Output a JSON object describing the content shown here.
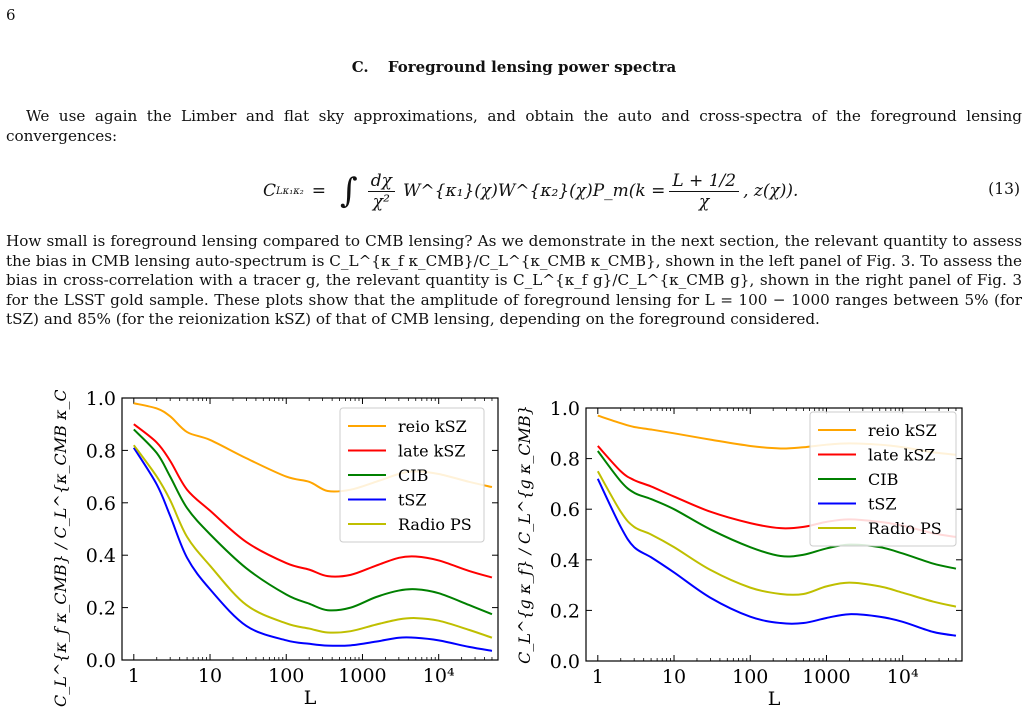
{
  "page": {
    "number": "6"
  },
  "section": {
    "letter": "C.",
    "title": "Foreground lensing power spectra"
  },
  "paragraph1": "We use again the Limber and flat sky approximations, and obtain the auto and cross-spectra of the foreground lensing convergences:",
  "equation": {
    "lhs": "C",
    "lhs_sub": "L",
    "lhs_sup": "κ₁κ₂",
    "equals": "=",
    "frac1_num": "dχ",
    "frac1_den": "χ²",
    "body": "W^{κ₁}(χ)W^{κ₂}(χ)P_m(k =",
    "frac2_num": "L + 1/2",
    "frac2_den": "χ",
    "tail": ", z(χ)).",
    "number": "(13)"
  },
  "paragraph2": "How small is foreground lensing compared to CMB lensing? As we demonstrate in the next section, the relevant quantity to assess the bias in CMB lensing auto-spectrum is C_L^{κ_f κ_CMB}/C_L^{κ_CMB κ_CMB}, shown in the left panel of Fig. 3. To assess the bias in cross-correlation with a tracer g, the relevant quantity is C_L^{κ_f g}/C_L^{κ_CMB g}, shown in the right panel of Fig. 3 for the LSST gold sample. These plots show that the amplitude of foreground lensing for L = 100 − 1000 ranges between 5% (for tSZ) and 85% (for the reionization kSZ) of that of CMB lensing, depending on the foreground considered.",
  "chart_data": [
    {
      "type": "line",
      "xlabel": "L",
      "ylabel": "C_L^{κ_f κ_CMB} / C_L^{κ_CMB κ_CMB}",
      "xscale": "log",
      "xlim": [
        0.7,
        60000
      ],
      "ylim": [
        0.0,
        1.0
      ],
      "xticks": [
        "1",
        "10",
        "100",
        "1000",
        "10⁴"
      ],
      "yticks": [
        "0.0",
        "0.2",
        "0.4",
        "0.6",
        "0.8",
        "1.0"
      ],
      "legend_position": "top-right",
      "x": [
        1,
        2,
        3,
        5,
        10,
        30,
        100,
        200,
        350,
        700,
        1500,
        3000,
        5000,
        10000,
        25000,
        50000
      ],
      "series": [
        {
          "name": "reio kSZ",
          "color": "#ffa500",
          "values": [
            0.98,
            0.96,
            0.93,
            0.87,
            0.84,
            0.77,
            0.7,
            0.68,
            0.645,
            0.65,
            0.68,
            0.71,
            0.72,
            0.71,
            0.68,
            0.66
          ]
        },
        {
          "name": "late kSZ",
          "color": "#ff0000",
          "values": [
            0.9,
            0.83,
            0.76,
            0.65,
            0.57,
            0.45,
            0.37,
            0.345,
            0.32,
            0.325,
            0.36,
            0.39,
            0.395,
            0.38,
            0.34,
            0.315
          ]
        },
        {
          "name": "CIB",
          "color": "#008000",
          "values": [
            0.88,
            0.79,
            0.7,
            0.58,
            0.48,
            0.35,
            0.25,
            0.215,
            0.19,
            0.2,
            0.24,
            0.265,
            0.27,
            0.255,
            0.21,
            0.175
          ]
        },
        {
          "name": "tSZ",
          "color": "#0000ff",
          "values": [
            0.81,
            0.67,
            0.55,
            0.39,
            0.27,
            0.13,
            0.075,
            0.062,
            0.055,
            0.056,
            0.07,
            0.085,
            0.085,
            0.075,
            0.05,
            0.035
          ]
        },
        {
          "name": "Radio PS",
          "color": "#bfbf00",
          "values": [
            0.82,
            0.7,
            0.61,
            0.47,
            0.36,
            0.21,
            0.14,
            0.12,
            0.105,
            0.11,
            0.135,
            0.155,
            0.16,
            0.15,
            0.115,
            0.085
          ]
        }
      ]
    },
    {
      "type": "line",
      "xlabel": "L",
      "ylabel": "C_L^{g κ_f} / C_L^{g κ_CMB}",
      "xscale": "log",
      "xlim": [
        0.7,
        60000
      ],
      "ylim": [
        0.0,
        1.0
      ],
      "xticks": [
        "1",
        "10",
        "100",
        "1000",
        "10⁴"
      ],
      "yticks": [
        "0.0",
        "0.2",
        "0.4",
        "0.6",
        "0.8",
        "1.0"
      ],
      "legend_position": "top-right",
      "x": [
        1,
        2,
        3,
        5,
        10,
        30,
        100,
        250,
        500,
        1000,
        2000,
        5000,
        10000,
        25000,
        50000
      ],
      "series": [
        {
          "name": "reio kSZ",
          "color": "#ffa500",
          "values": [
            0.97,
            0.94,
            0.925,
            0.915,
            0.9,
            0.875,
            0.85,
            0.84,
            0.845,
            0.855,
            0.86,
            0.855,
            0.845,
            0.825,
            0.815
          ]
        },
        {
          "name": "late kSZ",
          "color": "#ff0000",
          "values": [
            0.85,
            0.75,
            0.715,
            0.69,
            0.65,
            0.59,
            0.545,
            0.525,
            0.53,
            0.55,
            0.56,
            0.55,
            0.535,
            0.505,
            0.49
          ]
        },
        {
          "name": "CIB",
          "color": "#008000",
          "values": [
            0.83,
            0.71,
            0.665,
            0.64,
            0.6,
            0.52,
            0.45,
            0.415,
            0.42,
            0.445,
            0.46,
            0.45,
            0.425,
            0.385,
            0.365
          ]
        },
        {
          "name": "tSZ",
          "color": "#0000ff",
          "values": [
            0.72,
            0.53,
            0.45,
            0.41,
            0.35,
            0.25,
            0.175,
            0.15,
            0.15,
            0.17,
            0.185,
            0.175,
            0.155,
            0.115,
            0.1
          ]
        },
        {
          "name": "Radio PS",
          "color": "#bfbf00",
          "values": [
            0.75,
            0.59,
            0.53,
            0.5,
            0.45,
            0.36,
            0.29,
            0.265,
            0.265,
            0.295,
            0.31,
            0.295,
            0.27,
            0.235,
            0.215
          ]
        }
      ]
    }
  ]
}
